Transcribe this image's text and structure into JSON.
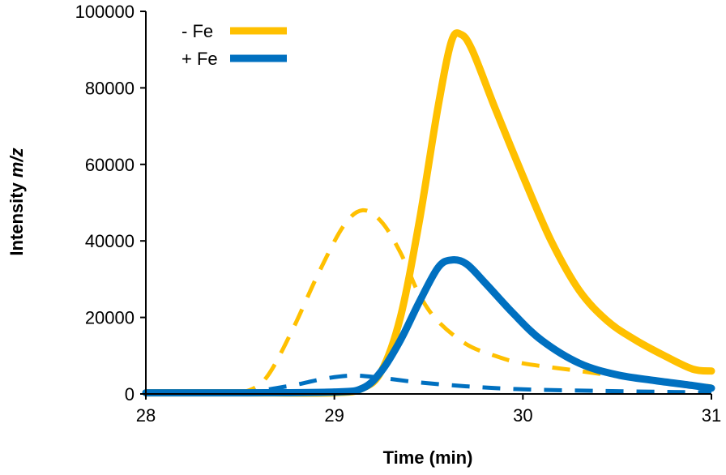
{
  "chart_data": {
    "type": "line",
    "xlabel": "Time (min)",
    "ylabel_prefix": "Intensity ",
    "ylabel_italic": "m/z",
    "xlim": [
      28,
      31
    ],
    "ylim": [
      0,
      100000
    ],
    "xticks": [
      28,
      29,
      30,
      31
    ],
    "yticks": [
      0,
      20000,
      40000,
      60000,
      80000,
      100000
    ],
    "grid": false,
    "legend_position": "top-left",
    "legend": [
      {
        "label": "- Fe",
        "color": "#FFC000"
      },
      {
        "label": "+ Fe",
        "color": "#0070C0"
      }
    ],
    "series": [
      {
        "name": "- Fe",
        "style": "solid",
        "color": "#FFC000",
        "points": [
          [
            28.0,
            300
          ],
          [
            28.5,
            300
          ],
          [
            29.0,
            300
          ],
          [
            29.15,
            1500
          ],
          [
            29.25,
            6000
          ],
          [
            29.35,
            20000
          ],
          [
            29.45,
            45000
          ],
          [
            29.55,
            75000
          ],
          [
            29.62,
            92000
          ],
          [
            29.67,
            94000
          ],
          [
            29.73,
            90000
          ],
          [
            29.85,
            75000
          ],
          [
            30.0,
            57000
          ],
          [
            30.15,
            40000
          ],
          [
            30.3,
            27000
          ],
          [
            30.45,
            19000
          ],
          [
            30.6,
            14000
          ],
          [
            30.75,
            10000
          ],
          [
            30.9,
            6500
          ],
          [
            31.0,
            6000
          ]
        ]
      },
      {
        "name": "+ Fe",
        "style": "solid",
        "color": "#0070C0",
        "points": [
          [
            28.0,
            300
          ],
          [
            28.5,
            300
          ],
          [
            29.0,
            500
          ],
          [
            29.15,
            1500
          ],
          [
            29.25,
            6000
          ],
          [
            29.35,
            14000
          ],
          [
            29.45,
            24000
          ],
          [
            29.55,
            33000
          ],
          [
            29.62,
            35000
          ],
          [
            29.7,
            34000
          ],
          [
            29.8,
            29000
          ],
          [
            29.95,
            21000
          ],
          [
            30.1,
            14000
          ],
          [
            30.3,
            8000
          ],
          [
            30.5,
            5000
          ],
          [
            30.7,
            3500
          ],
          [
            30.9,
            2200
          ],
          [
            31.0,
            1500
          ]
        ]
      },
      {
        "name": "- Fe",
        "style": "dashed",
        "color": "#FFC000",
        "points": [
          [
            28.0,
            300
          ],
          [
            28.4,
            300
          ],
          [
            28.55,
            1000
          ],
          [
            28.65,
            5000
          ],
          [
            28.78,
            17000
          ],
          [
            28.92,
            32000
          ],
          [
            29.05,
            44000
          ],
          [
            29.15,
            48000
          ],
          [
            29.25,
            45000
          ],
          [
            29.35,
            37000
          ],
          [
            29.45,
            26000
          ],
          [
            29.55,
            19000
          ],
          [
            29.7,
            13000
          ],
          [
            29.85,
            10000
          ],
          [
            30.0,
            8000
          ],
          [
            30.3,
            6000
          ],
          [
            30.6,
            4000
          ],
          [
            30.8,
            3000
          ],
          [
            31.0,
            2000
          ]
        ]
      },
      {
        "name": "+ Fe",
        "style": "dashed",
        "color": "#0070C0",
        "points": [
          [
            28.0,
            300
          ],
          [
            28.5,
            500
          ],
          [
            28.75,
            2000
          ],
          [
            28.95,
            4000
          ],
          [
            29.1,
            4800
          ],
          [
            29.25,
            4200
          ],
          [
            29.45,
            3000
          ],
          [
            29.7,
            2000
          ],
          [
            30.0,
            1200
          ],
          [
            30.4,
            800
          ],
          [
            30.8,
            500
          ],
          [
            31.0,
            400
          ]
        ]
      }
    ]
  }
}
